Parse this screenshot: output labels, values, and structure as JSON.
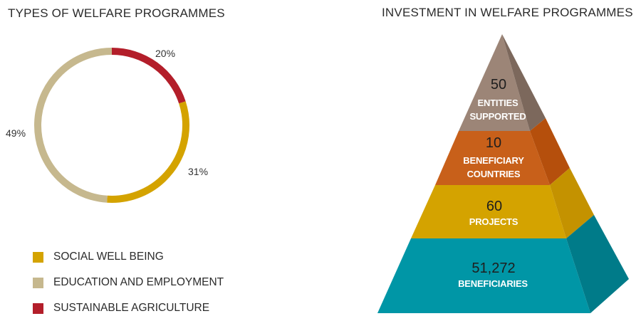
{
  "chart_data": [
    {
      "type": "donut",
      "title": "TYPES OF WELFARE PROGRAMMES",
      "slices": [
        {
          "label": "SOCIAL WELL BEING",
          "value": 31,
          "display": "31%",
          "color": "#d4a300"
        },
        {
          "label": "EDUCATION AND EMPLOYMENT",
          "value": 49,
          "display": "49%",
          "color": "#c6b88e"
        },
        {
          "label": "SUSTAINABLE AGRICULTURE",
          "value": 20,
          "display": "20%",
          "color": "#b31e2a"
        }
      ]
    },
    {
      "type": "pyramid",
      "title": "INVESTMENT IN WELFARE PROGRAMMES",
      "tiers": [
        {
          "value": "50",
          "label_lines": [
            "ENTITIES",
            "SUPPORTED"
          ],
          "color": "#9c8577",
          "side_color": "#7c685c"
        },
        {
          "value": "10",
          "label_lines": [
            "BENEFICIARY",
            "COUNTRIES"
          ],
          "color": "#c8601a",
          "side_color": "#b54f0c"
        },
        {
          "value": "60",
          "label_lines": [
            "PROJECTS"
          ],
          "color": "#d4a300",
          "side_color": "#c49200"
        },
        {
          "value": "51,272",
          "label_lines": [
            "BENEFICIARIES"
          ],
          "color": "#0096a6",
          "side_color": "#007b89"
        }
      ]
    }
  ]
}
